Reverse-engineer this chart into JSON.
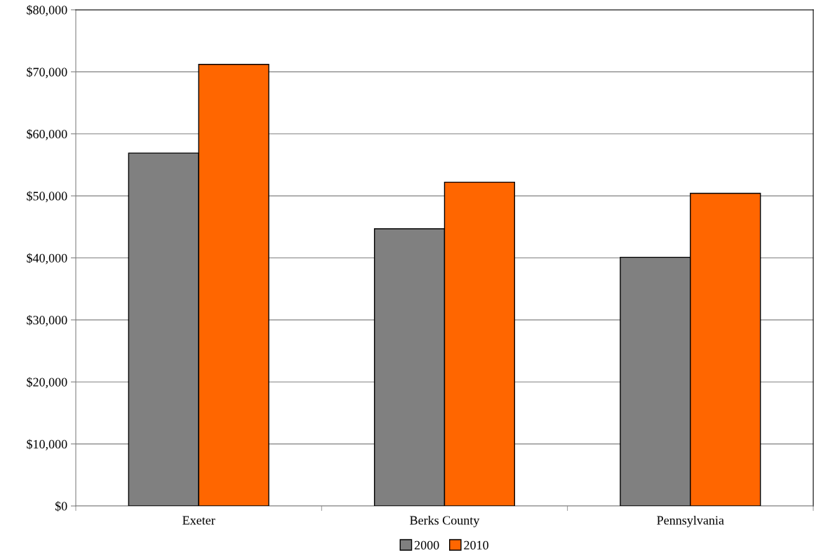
{
  "chart_data": {
    "type": "bar",
    "categories": [
      "Exeter",
      "Berks County",
      "Pennsylvania"
    ],
    "series": [
      {
        "name": "2000",
        "color": "#808080",
        "values": [
          56900,
          44700,
          40100
        ]
      },
      {
        "name": "2010",
        "color": "#ff6600",
        "values": [
          71200,
          52200,
          50400
        ]
      }
    ],
    "ylim": [
      0,
      80000
    ],
    "yticks": [
      {
        "value": 0,
        "label": "$0"
      },
      {
        "value": 10000,
        "label": "$10,000"
      },
      {
        "value": 20000,
        "label": "$20,000"
      },
      {
        "value": 30000,
        "label": "$30,000"
      },
      {
        "value": 40000,
        "label": "$40,000"
      },
      {
        "value": 50000,
        "label": "$50,000"
      },
      {
        "value": 60000,
        "label": "$60,000"
      },
      {
        "value": 70000,
        "label": "$70,000"
      },
      {
        "value": 80000,
        "label": "$80,000"
      }
    ],
    "grid": "y",
    "legend": "bottom"
  }
}
